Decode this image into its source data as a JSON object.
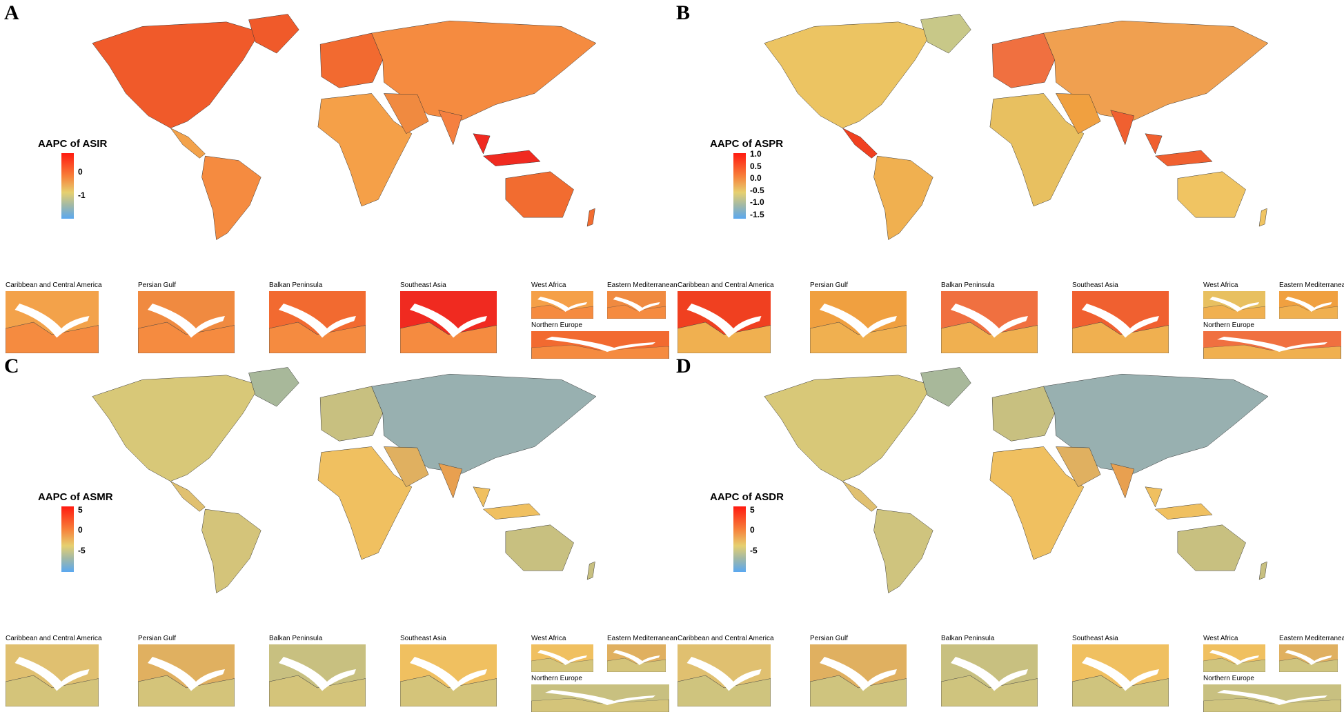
{
  "panels": [
    {
      "letter": "A",
      "legend_title": "AAPC of ASIR",
      "ticks": [
        "0",
        "-1"
      ],
      "colors": {
        "na": "#f05a2a",
        "greenland": "#f05a2a",
        "ca": "#f3a24a",
        "sa": "#f58b40",
        "europe": "#f26a30",
        "asia": "#f58b40",
        "africa": "#f5a048",
        "me": "#f08a40",
        "india": "#f58040",
        "sea": "#f02a20",
        "aus": "#f26c30"
      }
    },
    {
      "letter": "B",
      "legend_title": "AAPC of ASPR",
      "ticks": [
        "1.0",
        "0.5",
        "0.0",
        "-0.5",
        "-1.0",
        "-1.5"
      ],
      "colors": {
        "na": "#ecc462",
        "greenland": "#c8c888",
        "ca": "#f04020",
        "sa": "#f0b050",
        "europe": "#f07040",
        "asia": "#f0a050",
        "africa": "#e8c060",
        "me": "#f0a040",
        "india": "#f06030",
        "sea": "#f06030",
        "aus": "#f0c462"
      }
    },
    {
      "letter": "C",
      "legend_title": "AAPC of ASMR",
      "ticks": [
        "5",
        "0",
        "-5"
      ],
      "colors": {
        "na": "#d8c878",
        "greenland": "#a8b89a",
        "ca": "#e0c070",
        "sa": "#d4c47a",
        "europe": "#c8c080",
        "asia": "#98b0b0",
        "africa": "#f0c060",
        "me": "#e0b060",
        "india": "#e8a050",
        "sea": "#f0c060",
        "aus": "#c8c080"
      }
    },
    {
      "letter": "D",
      "legend_title": "AAPC of ASDR",
      "ticks": [
        "5",
        "0",
        "-5"
      ],
      "colors": {
        "na": "#d8c878",
        "greenland": "#a8b89a",
        "ca": "#e0c070",
        "sa": "#cfc47e",
        "europe": "#c8c080",
        "asia": "#98b0b0",
        "africa": "#f0c060",
        "me": "#e0b060",
        "india": "#e8a050",
        "sea": "#f0c060",
        "aus": "#c8c080"
      }
    }
  ],
  "insets": [
    "Caribbean and Central America",
    "Persian Gulf",
    "Balkan Peninsula",
    "Southeast Asia",
    "West Africa",
    "Eastern Mediterranean",
    "Northern Europe"
  ]
}
